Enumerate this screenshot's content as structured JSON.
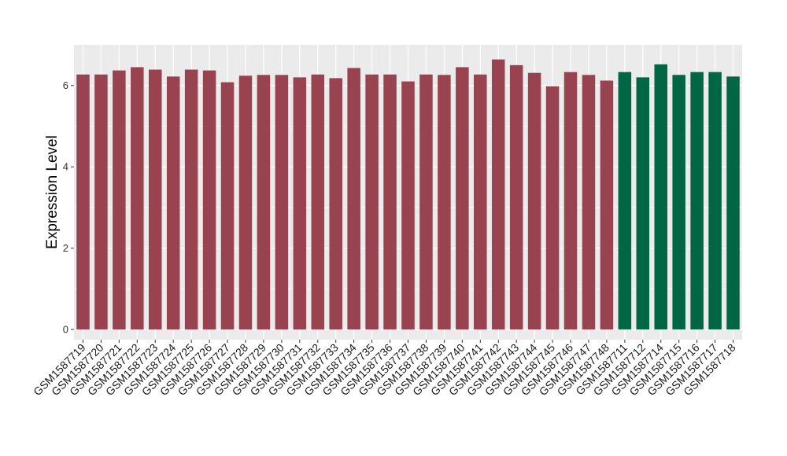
{
  "chart_data": {
    "type": "bar",
    "title": "",
    "xlabel": "",
    "ylabel": "Expression Level",
    "ylim": [
      -0.25,
      7.0
    ],
    "yticks": [
      0,
      2,
      4,
      6
    ],
    "grid": true,
    "legend": "none",
    "categories": [
      "GSM1587719",
      "GSM1587720",
      "GSM1587721",
      "GSM1587722",
      "GSM1587723",
      "GSM1587724",
      "GSM1587725",
      "GSM1587726",
      "GSM1587727",
      "GSM1587728",
      "GSM1587729",
      "GSM1587730",
      "GSM1587731",
      "GSM1587732",
      "GSM1587733",
      "GSM1587734",
      "GSM1587735",
      "GSM1587736",
      "GSM1587737",
      "GSM1587738",
      "GSM1587739",
      "GSM1587740",
      "GSM1587741",
      "GSM1587742",
      "GSM1587743",
      "GSM1587744",
      "GSM1587745",
      "GSM1587746",
      "GSM1587747",
      "GSM1587748",
      "GSM1587711",
      "GSM1587712",
      "GSM1587714",
      "GSM1587715",
      "GSM1587716",
      "GSM1587717",
      "GSM1587718"
    ],
    "values": [
      6.27,
      6.27,
      6.37,
      6.45,
      6.39,
      6.22,
      6.39,
      6.37,
      6.08,
      6.24,
      6.26,
      6.26,
      6.2,
      6.27,
      6.18,
      6.43,
      6.27,
      6.27,
      6.1,
      6.27,
      6.26,
      6.45,
      6.27,
      6.64,
      6.5,
      6.31,
      5.98,
      6.33,
      6.26,
      6.12,
      6.33,
      6.2,
      6.52,
      6.26,
      6.33,
      6.33,
      6.22
    ],
    "groups": [
      "a",
      "a",
      "a",
      "a",
      "a",
      "a",
      "a",
      "a",
      "a",
      "a",
      "a",
      "a",
      "a",
      "a",
      "a",
      "a",
      "a",
      "a",
      "a",
      "a",
      "a",
      "a",
      "a",
      "a",
      "a",
      "a",
      "a",
      "a",
      "a",
      "a",
      "b",
      "b",
      "b",
      "b",
      "b",
      "b",
      "b"
    ],
    "colors": {
      "a": "#9a4350",
      "b": "#006644",
      "panel": "#ebebeb",
      "grid": "#ffffff"
    }
  }
}
